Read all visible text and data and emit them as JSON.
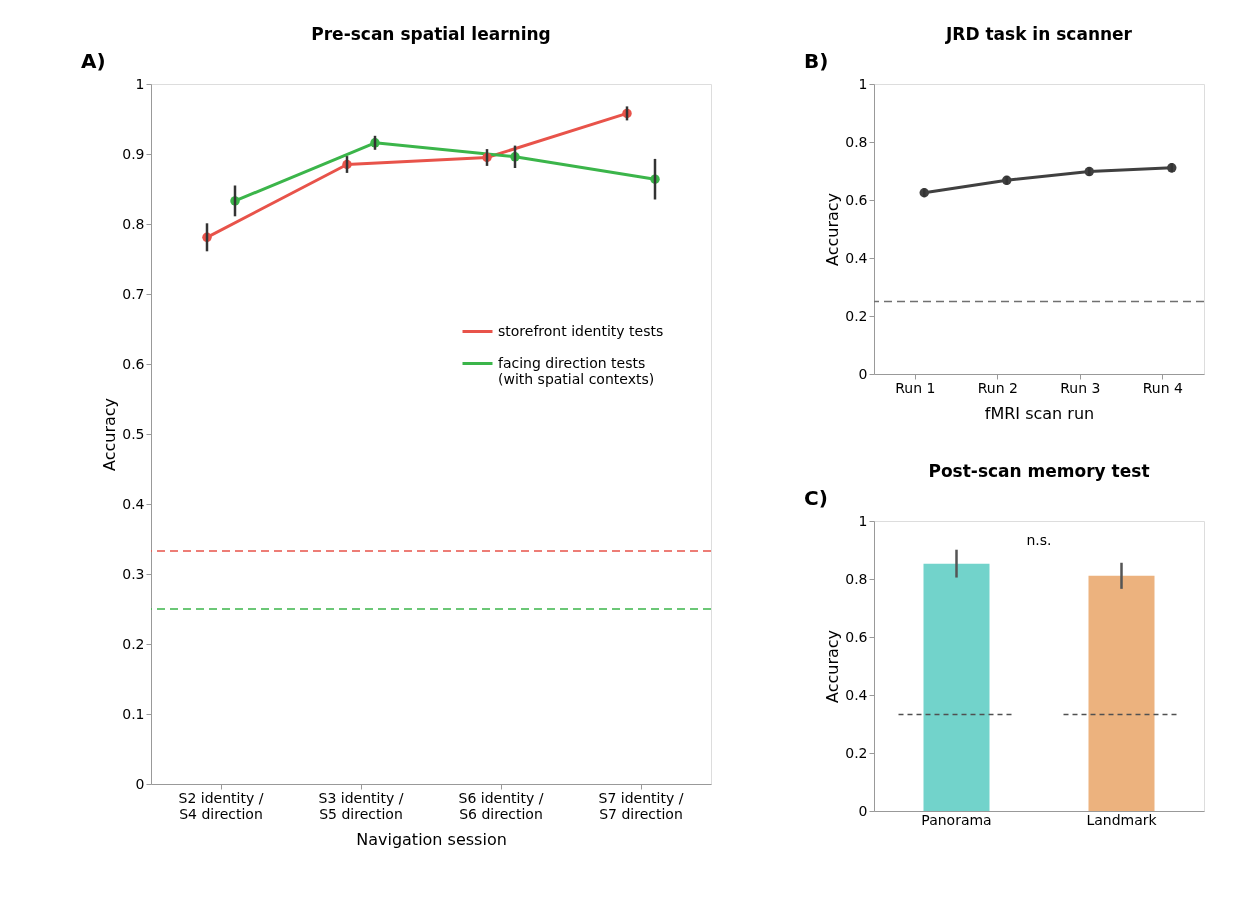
{
  "chart_data": [
    {
      "type": "line",
      "title": "Pre-scan spatial learning",
      "xlabel": "Navigation session",
      "ylabel": "Accuracy",
      "categories": [
        "S2 identity /\nS4 direction",
        "S3 identity /\nS5 direction",
        "S6 identity /\nS6 direction",
        "S7 identity /\nS7 direction"
      ],
      "series": [
        {
          "name": "storefront identity tests",
          "color": "#e8534a",
          "values": [
            0.781,
            0.885,
            0.895,
            0.958
          ],
          "errors": [
            0.02,
            0.012,
            0.012,
            0.01
          ]
        },
        {
          "name": "facing direction tests\n(with spatial contexts)",
          "color": "#3bb54a",
          "values": [
            0.833,
            0.916,
            0.896,
            0.864
          ],
          "errors": [
            0.022,
            0.01,
            0.016,
            0.029
          ]
        }
      ],
      "ylim": [
        0,
        1
      ],
      "yticks": [
        0,
        0.1,
        0.2,
        0.3,
        0.4,
        0.5,
        0.6,
        0.7,
        0.8,
        0.9,
        1
      ],
      "ref_lines": [
        {
          "axis": "y",
          "value": 0.333,
          "color": "#e8534a",
          "line_style": "dashed"
        },
        {
          "axis": "y",
          "value": 0.25,
          "color": "#3bb54a",
          "line_style": "dashed"
        }
      ],
      "marker": "circle",
      "line_style": "solid",
      "grid": false,
      "legend": "right",
      "annotations": [
        "A)"
      ]
    },
    {
      "type": "line",
      "title": "JRD task in scanner",
      "xlabel": "fMRI scan run",
      "ylabel": "Accuracy",
      "categories": [
        "Run 1",
        "Run 2",
        "Run 3",
        "Run 4"
      ],
      "series": [
        {
          "color": "#404040",
          "values": [
            0.625,
            0.668,
            0.698,
            0.711
          ],
          "errors": [
            0.015,
            0.015,
            0.015,
            0.016
          ]
        }
      ],
      "ylim": [
        0,
        1
      ],
      "yticks": [
        0,
        0.2,
        0.4,
        0.6,
        0.8,
        1
      ],
      "ref_lines": [
        {
          "axis": "y",
          "value": 0.25,
          "color": "#707070",
          "line_style": "dashed"
        }
      ],
      "marker": "circle",
      "line_style": "solid",
      "grid": false,
      "legend": false,
      "annotations": [
        "B)"
      ]
    },
    {
      "type": "bar",
      "title": "Post-scan memory test",
      "ylabel": "Accuracy",
      "categories": [
        "Panorama",
        "Landmark"
      ],
      "values": [
        0.853,
        0.811
      ],
      "colors": [
        "#72d3cb",
        "#ecb27e"
      ],
      "errors": [
        0.048,
        0.045
      ],
      "ylim": [
        0,
        1
      ],
      "yticks": [
        0,
        0.2,
        0.4,
        0.6,
        0.8,
        1
      ],
      "ref_lines": [
        {
          "axis": "y",
          "value": 0.333,
          "color": "#505050",
          "line_style": "dashed"
        }
      ],
      "grid": false,
      "legend": false,
      "annotations": [
        "C)",
        "n.s."
      ]
    }
  ]
}
